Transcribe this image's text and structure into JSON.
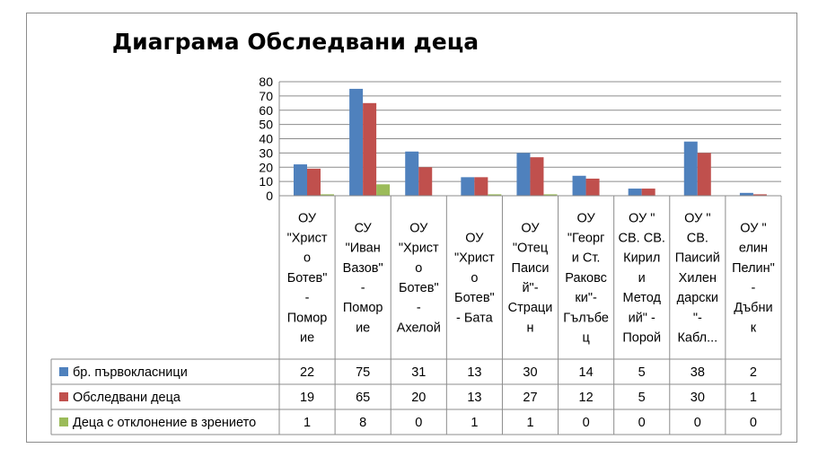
{
  "chart_data": {
    "type": "bar",
    "title": "Диаграма Обследвани деца",
    "ylim": [
      0,
      80
    ],
    "yticks": [
      0,
      10,
      20,
      30,
      40,
      50,
      60,
      70,
      80
    ],
    "grid": true,
    "legend": "data-table",
    "categories": [
      [
        "ОУ",
        "\"Христ",
        "о",
        "Ботев\"",
        "-",
        "Помор",
        "ие"
      ],
      [
        "СУ",
        "\"Иван",
        "Вазов\"",
        "-",
        "Помор",
        "ие"
      ],
      [
        "ОУ",
        "\"Христ",
        "о",
        "Ботев\"",
        "-",
        "Ахелой"
      ],
      [
        "ОУ",
        "\"Христ",
        "о",
        "Ботев\"",
        "- Бата"
      ],
      [
        "ОУ",
        "\"Отец",
        "Паиси",
        "й\"-",
        "Страци",
        "н"
      ],
      [
        "ОУ",
        "\"Георг",
        "и Ст.",
        "Раковс",
        "ки\"-",
        "Гълъбе",
        "ц"
      ],
      [
        "ОУ \"",
        "СВ. СВ.",
        "Кирил",
        "и",
        "Метод",
        "ий\" -",
        "Порой"
      ],
      [
        "ОУ \"",
        "СВ.",
        "Паисий",
        "Хилен",
        "дарски",
        "\"-",
        "Кабл..."
      ],
      [
        "ОУ \"",
        "елин",
        "Пелин\"",
        "-",
        "Дъбни",
        "к"
      ]
    ],
    "series": [
      {
        "name": "бр. първокласници",
        "color": "#4f81bd",
        "values": [
          22,
          75,
          31,
          13,
          30,
          14,
          5,
          38,
          2
        ]
      },
      {
        "name": "Обследвани деца",
        "color": "#c0504d",
        "values": [
          19,
          65,
          20,
          13,
          27,
          12,
          5,
          30,
          1
        ]
      },
      {
        "name": "Деца с отклонение в зрението",
        "color": "#9bbb59",
        "values": [
          1,
          8,
          0,
          1,
          1,
          0,
          0,
          0,
          0
        ]
      }
    ]
  }
}
